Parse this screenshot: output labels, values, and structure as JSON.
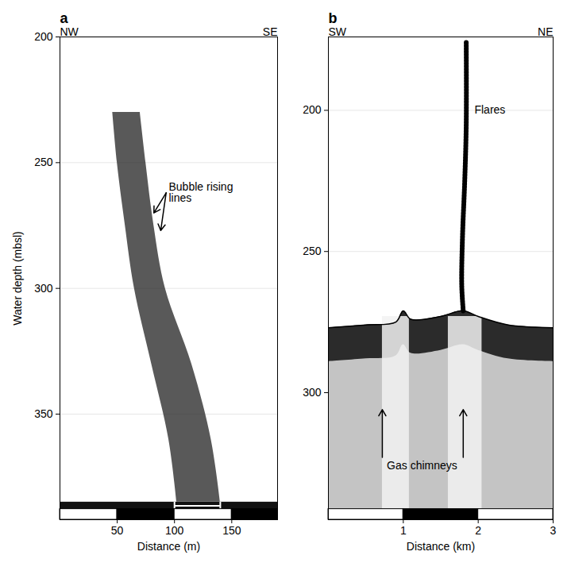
{
  "chart_data": [
    {
      "type": "echogram",
      "panel": "a",
      "direction_left": "NW",
      "direction_right": "SE",
      "xlabel": "Distance (m)",
      "ylabel": "Water depth (mbsl)",
      "xlim": [
        0,
        190
      ],
      "xticks": [
        50,
        100,
        150
      ],
      "ylim": [
        200,
        392
      ],
      "yticks": [
        200,
        250,
        300,
        350
      ],
      "grid": true,
      "seafloor_depth": 385,
      "flare": {
        "depth": [
          385,
          360,
          330,
          300,
          275,
          250,
          230
        ],
        "left": [
          102,
          95,
          80,
          65,
          57,
          50,
          46
        ],
        "right": [
          140,
          132,
          115,
          92,
          82,
          75,
          70
        ]
      },
      "bracket": [
        100,
        140
      ],
      "annotations": [
        {
          "text": "Bubble rising lines",
          "x": 95,
          "y": 262,
          "arrows": [
            [
              82,
              270
            ],
            [
              88,
              277
            ]
          ]
        }
      ]
    },
    {
      "type": "echogram",
      "panel": "b",
      "direction_left": "SW",
      "direction_right": "NE",
      "xlabel": "Distance (km)",
      "xlim": [
        0,
        3
      ],
      "xticks": [
        1,
        2,
        3
      ],
      "ylim": [
        174,
        345
      ],
      "yticks": [
        200,
        250,
        300
      ],
      "grid": true,
      "seafloor": {
        "x": [
          0,
          0.5,
          0.9,
          1.0,
          1.1,
          1.5,
          1.8,
          2.0,
          2.4,
          3
        ],
        "depth": [
          277,
          276,
          275,
          271,
          274,
          273,
          271,
          273,
          276,
          277
        ]
      },
      "flare": {
        "x": [
          1.8,
          1.78,
          1.79,
          1.82,
          1.84,
          1.84
        ],
        "depth": [
          271,
          262,
          245,
          225,
          205,
          176
        ]
      },
      "chimneys": [
        [
          0.72,
          1.08
        ],
        [
          1.6,
          2.05
        ]
      ],
      "annotations": [
        {
          "text": "Flares",
          "x": 1.95,
          "y": 200
        },
        {
          "text": "Gas chimneys",
          "x": 1.25,
          "y": 326,
          "arrows": [
            [
              0.72,
              306
            ],
            [
              1.8,
              306
            ]
          ]
        }
      ]
    }
  ]
}
